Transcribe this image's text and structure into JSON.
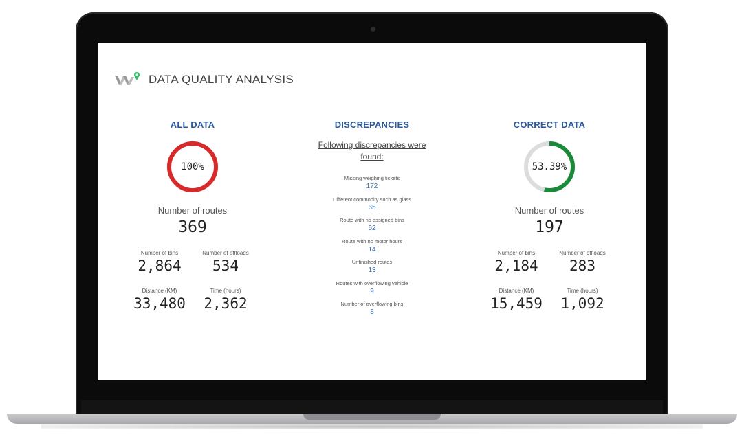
{
  "header": {
    "title": "DATA QUALITY ANALYSIS",
    "logo_icon": "w-pin-logo"
  },
  "all_data": {
    "title": "ALL DATA",
    "percent_label": "100%",
    "percent_value": 1.0,
    "ring_color": "#d72b2b",
    "routes_label": "Number of routes",
    "routes_value": "369",
    "stats": [
      {
        "label": "Number of bins",
        "value": "2,864"
      },
      {
        "label": "Number of offloads",
        "value": "534"
      },
      {
        "label": "Distance (KM)",
        "value": "33,480"
      },
      {
        "label": "Time (hours)",
        "value": "2,362"
      }
    ]
  },
  "discrepancies": {
    "title": "DISCREPANCIES",
    "intro": "Following discrepancies were found:",
    "items": [
      {
        "label": "Missing weighing tickets",
        "value": "172"
      },
      {
        "label": "Different commodity such as glass",
        "value": "65"
      },
      {
        "label": "Route with no assigned bins",
        "value": "62"
      },
      {
        "label": "Route with no motor hours",
        "value": "14"
      },
      {
        "label": "Unfinished routes",
        "value": "13"
      },
      {
        "label": "Routes with overflowing vehicle",
        "value": "9"
      },
      {
        "label": "Number of overflowing bins",
        "value": "8"
      }
    ]
  },
  "correct_data": {
    "title": "CORRECT DATA",
    "percent_label": "53.39%",
    "percent_value": 0.5339,
    "ring_color": "#1a8a3a",
    "track_color": "#dcdcdc",
    "routes_label": "Number of routes",
    "routes_value": "197",
    "stats": [
      {
        "label": "Number of bins",
        "value": "2,184"
      },
      {
        "label": "Number of offloads",
        "value": "283"
      },
      {
        "label": "Distance (KM)",
        "value": "15,459"
      },
      {
        "label": "Time (hours)",
        "value": "1,092"
      }
    ]
  }
}
